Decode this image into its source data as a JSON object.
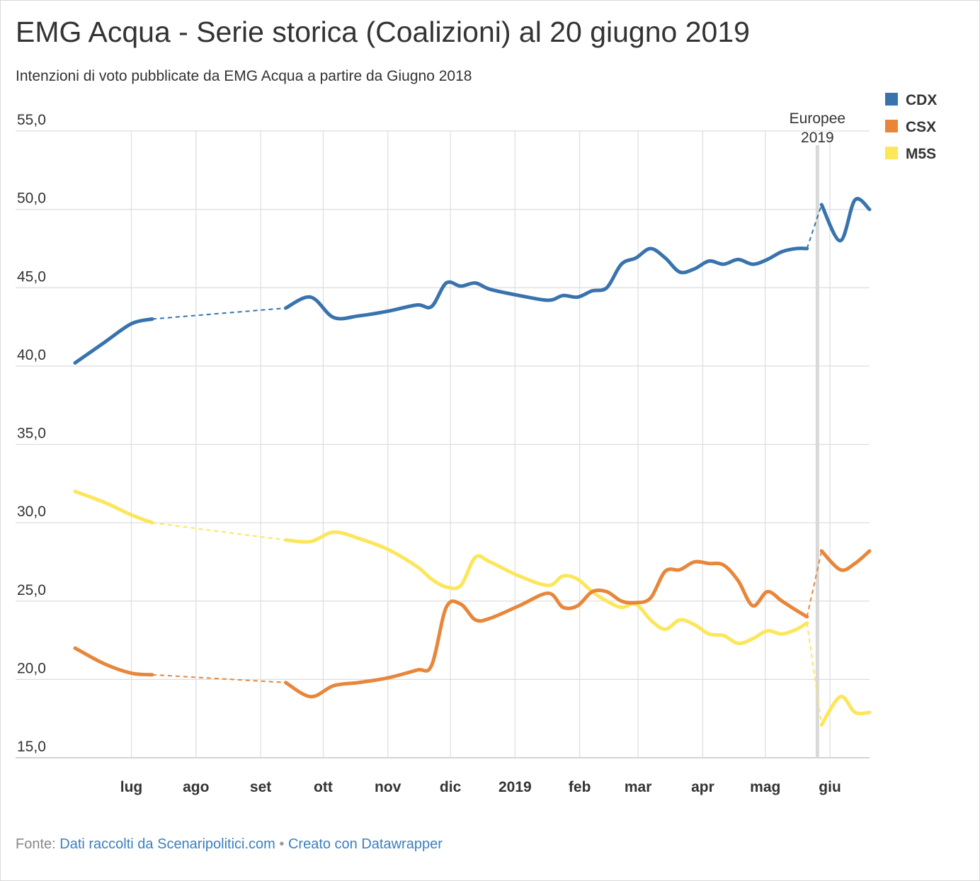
{
  "title": "EMG Acqua - Serie storica (Coalizioni) al 20 giugno 2019",
  "subtitle": "Intenzioni di voto pubblicate da EMG Acqua a partire da Giugno 2018",
  "footer": {
    "prefix": "Fonte:",
    "source": "Dati raccolti da Scenaripolitici.com",
    "separator": "•",
    "credit": "Creato con Datawrapper"
  },
  "colors": {
    "CDX": "#3973ae",
    "CSX": "#e8863a",
    "M5S": "#fce65a",
    "grid": "#dddddd",
    "annotation_line": "#d9d9d9"
  },
  "chart_data": {
    "type": "line",
    "title": "EMG Acqua - Serie storica (Coalizioni) al 20 giugno 2019",
    "ylim": [
      15,
      55
    ],
    "y_ticks": [
      "55,0",
      "50,0",
      "45,0",
      "40,0",
      "35,0",
      "30,0",
      "25,0",
      "20,0",
      "15,0"
    ],
    "y_tick_values": [
      55,
      50,
      45,
      40,
      35,
      30,
      25,
      20,
      15
    ],
    "xlim": [
      "2018-06-04",
      "2019-06-20"
    ],
    "x_ticks": [
      {
        "label": "lug",
        "date": "2018-07-01"
      },
      {
        "label": "ago",
        "date": "2018-08-01"
      },
      {
        "label": "set",
        "date": "2018-09-01"
      },
      {
        "label": "ott",
        "date": "2018-10-01"
      },
      {
        "label": "nov",
        "date": "2018-11-01"
      },
      {
        "label": "dic",
        "date": "2018-12-01"
      },
      {
        "label": "2019",
        "date": "2019-01-01"
      },
      {
        "label": "feb",
        "date": "2019-02-01"
      },
      {
        "label": "mar",
        "date": "2019-03-01"
      },
      {
        "label": "apr",
        "date": "2019-04-01"
      },
      {
        "label": "mag",
        "date": "2019-05-01"
      },
      {
        "label": "giu",
        "date": "2019-06-01"
      }
    ],
    "grid": "on",
    "legend": "top-right",
    "annotations": [
      {
        "date": "2019-05-26",
        "line1": "Europee",
        "line2": "2019"
      }
    ],
    "dashed_gaps": [
      [
        "2018-07-11",
        "2018-09-13"
      ],
      [
        "2019-05-21",
        "2019-05-28"
      ]
    ],
    "series": [
      {
        "name": "CDX",
        "points": [
          [
            "2018-06-04",
            40.2
          ],
          [
            "2018-06-18",
            41.5
          ],
          [
            "2018-07-01",
            42.7
          ],
          [
            "2018-07-11",
            43.0
          ],
          [
            "2018-09-13",
            43.7
          ],
          [
            "2018-09-25",
            44.4
          ],
          [
            "2018-10-06",
            43.1
          ],
          [
            "2018-10-18",
            43.2
          ],
          [
            "2018-11-01",
            43.5
          ],
          [
            "2018-11-15",
            43.9
          ],
          [
            "2018-11-22",
            43.8
          ],
          [
            "2018-11-29",
            45.3
          ],
          [
            "2018-12-06",
            45.1
          ],
          [
            "2018-12-13",
            45.3
          ],
          [
            "2018-12-20",
            44.9
          ],
          [
            "2019-01-03",
            44.5
          ],
          [
            "2019-01-17",
            44.2
          ],
          [
            "2019-01-24",
            44.5
          ],
          [
            "2019-01-31",
            44.4
          ],
          [
            "2019-02-07",
            44.8
          ],
          [
            "2019-02-14",
            45.0
          ],
          [
            "2019-02-21",
            46.5
          ],
          [
            "2019-02-28",
            46.9
          ],
          [
            "2019-03-07",
            47.5
          ],
          [
            "2019-03-14",
            46.9
          ],
          [
            "2019-03-21",
            46.0
          ],
          [
            "2019-03-28",
            46.2
          ],
          [
            "2019-04-04",
            46.7
          ],
          [
            "2019-04-11",
            46.5
          ],
          [
            "2019-04-18",
            46.8
          ],
          [
            "2019-04-25",
            46.5
          ],
          [
            "2019-05-02",
            46.8
          ],
          [
            "2019-05-09",
            47.3
          ],
          [
            "2019-05-16",
            47.5
          ],
          [
            "2019-05-21",
            47.5
          ],
          [
            "2019-05-28",
            50.3
          ],
          [
            "2019-06-06",
            48.0
          ],
          [
            "2019-06-13",
            50.6
          ],
          [
            "2019-06-20",
            50.0
          ]
        ]
      },
      {
        "name": "CSX",
        "points": [
          [
            "2018-06-04",
            22.0
          ],
          [
            "2018-06-18",
            21.0
          ],
          [
            "2018-07-01",
            20.4
          ],
          [
            "2018-07-11",
            20.3
          ],
          [
            "2018-09-13",
            19.8
          ],
          [
            "2018-09-25",
            18.9
          ],
          [
            "2018-10-06",
            19.6
          ],
          [
            "2018-10-18",
            19.8
          ],
          [
            "2018-11-01",
            20.1
          ],
          [
            "2018-11-15",
            20.6
          ],
          [
            "2018-11-22",
            20.9
          ],
          [
            "2018-11-29",
            24.6
          ],
          [
            "2018-12-06",
            24.8
          ],
          [
            "2018-12-13",
            23.8
          ],
          [
            "2018-12-20",
            23.9
          ],
          [
            "2019-01-03",
            24.7
          ],
          [
            "2019-01-17",
            25.5
          ],
          [
            "2019-01-24",
            24.6
          ],
          [
            "2019-01-31",
            24.7
          ],
          [
            "2019-02-07",
            25.6
          ],
          [
            "2019-02-14",
            25.6
          ],
          [
            "2019-02-21",
            25.0
          ],
          [
            "2019-02-28",
            24.9
          ],
          [
            "2019-03-07",
            25.2
          ],
          [
            "2019-03-14",
            26.9
          ],
          [
            "2019-03-21",
            27.0
          ],
          [
            "2019-03-28",
            27.5
          ],
          [
            "2019-04-04",
            27.4
          ],
          [
            "2019-04-11",
            27.3
          ],
          [
            "2019-04-18",
            26.3
          ],
          [
            "2019-04-25",
            24.7
          ],
          [
            "2019-05-02",
            25.6
          ],
          [
            "2019-05-09",
            25.0
          ],
          [
            "2019-05-16",
            24.4
          ],
          [
            "2019-05-21",
            24.0
          ],
          [
            "2019-05-28",
            28.2
          ],
          [
            "2019-06-06",
            27.0
          ],
          [
            "2019-06-13",
            27.4
          ],
          [
            "2019-06-20",
            28.2
          ]
        ]
      },
      {
        "name": "M5S",
        "points": [
          [
            "2018-06-04",
            32.0
          ],
          [
            "2018-06-18",
            31.3
          ],
          [
            "2018-07-01",
            30.5
          ],
          [
            "2018-07-11",
            30.0
          ],
          [
            "2018-09-13",
            28.9
          ],
          [
            "2018-09-25",
            28.8
          ],
          [
            "2018-10-06",
            29.4
          ],
          [
            "2018-10-18",
            29.0
          ],
          [
            "2018-11-01",
            28.3
          ],
          [
            "2018-11-15",
            27.2
          ],
          [
            "2018-11-22",
            26.4
          ],
          [
            "2018-11-29",
            25.9
          ],
          [
            "2018-12-06",
            26.0
          ],
          [
            "2018-12-13",
            27.8
          ],
          [
            "2018-12-20",
            27.5
          ],
          [
            "2019-01-03",
            26.6
          ],
          [
            "2019-01-17",
            26.0
          ],
          [
            "2019-01-24",
            26.6
          ],
          [
            "2019-01-31",
            26.4
          ],
          [
            "2019-02-07",
            25.6
          ],
          [
            "2019-02-14",
            25.0
          ],
          [
            "2019-02-21",
            24.6
          ],
          [
            "2019-02-28",
            24.8
          ],
          [
            "2019-03-07",
            23.8
          ],
          [
            "2019-03-14",
            23.2
          ],
          [
            "2019-03-21",
            23.8
          ],
          [
            "2019-03-28",
            23.5
          ],
          [
            "2019-04-04",
            22.9
          ],
          [
            "2019-04-11",
            22.8
          ],
          [
            "2019-04-18",
            22.3
          ],
          [
            "2019-04-25",
            22.6
          ],
          [
            "2019-05-02",
            23.1
          ],
          [
            "2019-05-09",
            22.9
          ],
          [
            "2019-05-16",
            23.2
          ],
          [
            "2019-05-21",
            23.6
          ],
          [
            "2019-05-28",
            17.1
          ],
          [
            "2019-06-06",
            18.9
          ],
          [
            "2019-06-13",
            17.9
          ],
          [
            "2019-06-20",
            17.9
          ]
        ]
      }
    ]
  }
}
